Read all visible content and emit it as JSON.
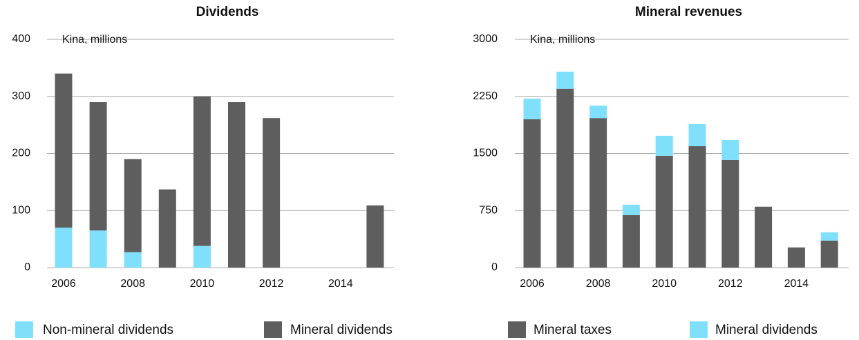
{
  "chart_data": [
    {
      "type": "bar",
      "stacked": true,
      "title": "Dividends",
      "annotation": "Kina, millions",
      "categories": [
        "2006",
        null,
        "2008",
        null,
        "2010",
        null,
        "2012",
        null,
        "2014",
        null
      ],
      "series": [
        {
          "name": "Non-mineral dividends",
          "color": "#80e0fc",
          "values": [
            70,
            65,
            27,
            0,
            38,
            0,
            0,
            0,
            0,
            0
          ]
        },
        {
          "name": "Mineral dividends",
          "color": "#5e5e5e",
          "values": [
            270,
            225,
            163,
            137,
            262,
            290,
            262,
            0,
            0,
            109
          ]
        }
      ],
      "ylim": [
        0,
        400
      ],
      "yticks": [
        0,
        100,
        200,
        300,
        400
      ],
      "grid": true,
      "legend": "bottom"
    },
    {
      "type": "bar",
      "stacked": true,
      "title": "Mineral revenues",
      "annotation": "Kina, millions",
      "categories": [
        "2006",
        null,
        "2008",
        null,
        "2010",
        null,
        "2012",
        null,
        "2014",
        null
      ],
      "series": [
        {
          "name": "Mineral taxes",
          "color": "#5e5e5e",
          "values": [
            1950,
            2350,
            1965,
            690,
            1470,
            1595,
            1415,
            800,
            265,
            355
          ]
        },
        {
          "name": "Mineral dividends",
          "color": "#80e0fc",
          "values": [
            270,
            225,
            163,
            137,
            262,
            290,
            262,
            0,
            0,
            109
          ]
        }
      ],
      "ylim": [
        0,
        3000
      ],
      "yticks": [
        0,
        750,
        1500,
        2250,
        3000
      ],
      "grid": true,
      "legend": "bottom"
    }
  ]
}
